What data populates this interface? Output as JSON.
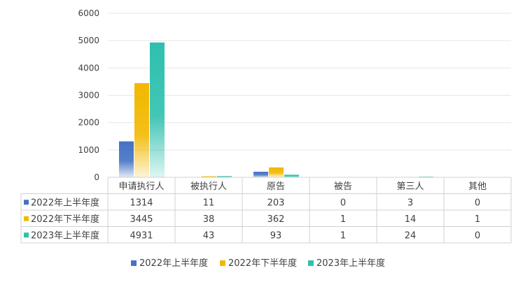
{
  "chart_data": {
    "type": "bar",
    "categories": [
      "申请执行人",
      "被执行人",
      "原告",
      "被告",
      "第三人",
      "其他"
    ],
    "series": [
      {
        "name": "2022年上半年度",
        "color": "#4472C4",
        "values": [
          1314,
          11,
          203,
          0,
          3,
          0
        ]
      },
      {
        "name": "2022年下半年度",
        "color": "#F2B800",
        "values": [
          3445,
          38,
          362,
          1,
          14,
          1
        ]
      },
      {
        "name": "2023年上半年度",
        "color": "#2EC0AE",
        "values": [
          4931,
          43,
          93,
          1,
          24,
          0
        ]
      }
    ],
    "y_ticks": [
      "0",
      "1000",
      "2000",
      "3000",
      "4000",
      "5000",
      "6000"
    ],
    "ylim": [
      0,
      6000
    ],
    "grid": true,
    "legend_position": "bottom",
    "data_table": true
  }
}
